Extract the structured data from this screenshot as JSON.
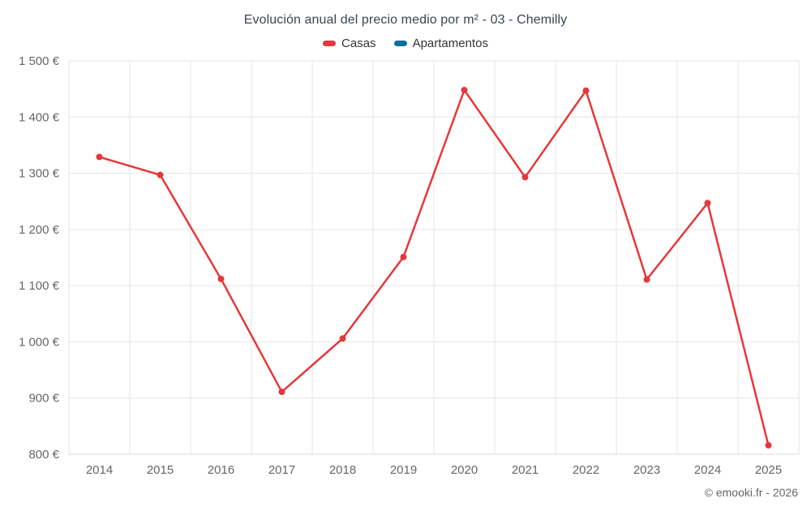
{
  "chart_data": {
    "type": "line",
    "title": "Evolución anual del precio medio por m² - 03 - Chemilly",
    "categories": [
      "2014",
      "2015",
      "2016",
      "2017",
      "2018",
      "2019",
      "2020",
      "2021",
      "2022",
      "2023",
      "2024",
      "2025"
    ],
    "series": [
      {
        "name": "Casas",
        "color": "#e5383b",
        "values": [
          1329,
          1297,
          1112,
          911,
          1006,
          1151,
          1448,
          1293,
          1447,
          1111,
          1247,
          816
        ]
      },
      {
        "name": "Apartamentos",
        "color": "#0d6e9e",
        "values": []
      }
    ],
    "ylim": [
      800,
      1500
    ],
    "ytick_step": 100,
    "ytick_labels": [
      "800 €",
      "900 €",
      "1 000 €",
      "1 100 €",
      "1 200 €",
      "1 300 €",
      "1 400 €",
      "1 500 €"
    ],
    "xlabel": "",
    "ylabel": "",
    "grid": true,
    "legend_position": "top",
    "currency": "€"
  },
  "footer": {
    "copyright": "© emooki.fr - 2026"
  },
  "style": {
    "grid_color": "#e6e6e6",
    "axis_line_color": "#d8d8d8",
    "tick_label_color": "#666666"
  }
}
